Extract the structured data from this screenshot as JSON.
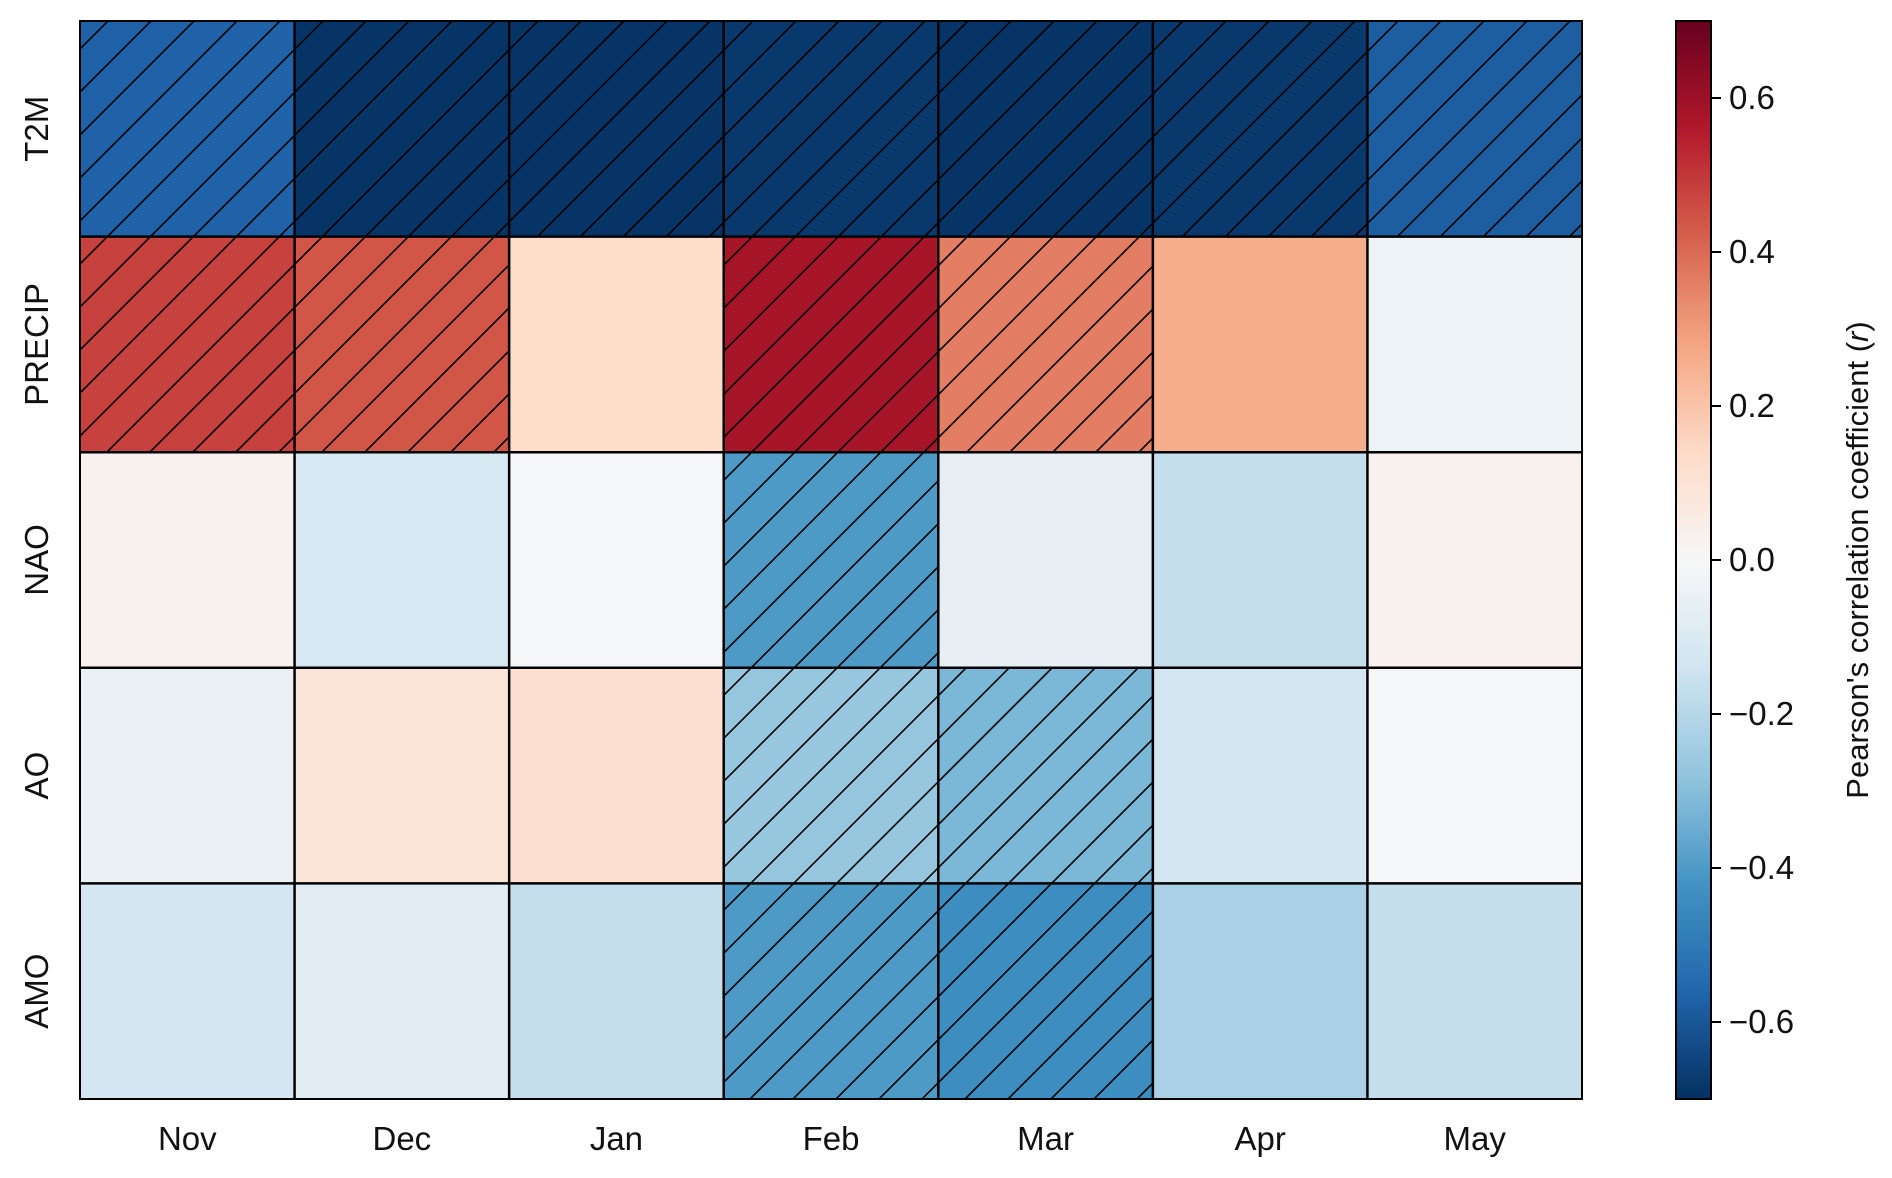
{
  "chart_data": {
    "type": "heatmap",
    "x_categories": [
      "Nov",
      "Dec",
      "Jan",
      "Feb",
      "Mar",
      "Apr",
      "May"
    ],
    "y_categories": [
      "T2M",
      "PRECIP",
      "NAO",
      "AO",
      "AMO"
    ],
    "values": [
      [
        -0.57,
        -0.69,
        -0.69,
        -0.68,
        -0.69,
        -0.68,
        -0.58
      ],
      [
        0.48,
        0.44,
        0.13,
        0.58,
        0.36,
        0.26,
        -0.04
      ],
      [
        0.03,
        -0.12,
        -0.01,
        -0.4,
        -0.06,
        -0.17,
        0.03
      ],
      [
        -0.05,
        0.09,
        0.12,
        -0.27,
        -0.32,
        -0.13,
        -0.01
      ],
      [
        -0.13,
        -0.08,
        -0.17,
        -0.4,
        -0.44,
        -0.23,
        -0.17
      ]
    ],
    "significant": [
      [
        true,
        true,
        true,
        true,
        true,
        true,
        true
      ],
      [
        true,
        true,
        false,
        true,
        true,
        false,
        false
      ],
      [
        false,
        false,
        false,
        true,
        false,
        false,
        false
      ],
      [
        false,
        false,
        false,
        true,
        true,
        false,
        false
      ],
      [
        false,
        false,
        false,
        true,
        true,
        false,
        false
      ]
    ],
    "colormap": "RdBu_r",
    "colorbar": {
      "label_prefix": "Pearson's correlation coefficient (",
      "label_var": "r",
      "label_suffix": ")",
      "range": [
        -0.7,
        0.7
      ],
      "ticks": [
        0.6,
        0.4,
        0.2,
        0.0,
        -0.2,
        -0.4,
        -0.6
      ],
      "tick_labels": [
        "0.6",
        "0.4",
        "0.2",
        "0.0",
        "−0.2",
        "−0.4",
        "−0.6"
      ]
    },
    "grid": true,
    "hatch": "significant cells"
  }
}
